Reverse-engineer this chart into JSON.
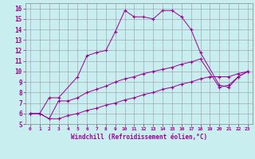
{
  "xlabel": "Windchill (Refroidissement éolien,°C)",
  "bg_color": "#c8eef0",
  "line_color": "#990099",
  "xlim": [
    -0.5,
    23.5
  ],
  "ylim": [
    5,
    16.5
  ],
  "xticks": [
    0,
    1,
    2,
    3,
    4,
    5,
    6,
    7,
    8,
    9,
    10,
    11,
    12,
    13,
    14,
    15,
    16,
    17,
    18,
    19,
    20,
    21,
    22,
    23
  ],
  "yticks": [
    5,
    6,
    7,
    8,
    9,
    10,
    11,
    12,
    13,
    14,
    15,
    16
  ],
  "line1_x": [
    0,
    1,
    2,
    3,
    5,
    6,
    7,
    8,
    9,
    10,
    11,
    12,
    13,
    14,
    15,
    16,
    17,
    18,
    20,
    21,
    22,
    23
  ],
  "line1_y": [
    6,
    6,
    7.5,
    7.5,
    9.5,
    11.5,
    11.8,
    12.0,
    13.8,
    15.8,
    15.2,
    15.2,
    15.0,
    15.8,
    15.8,
    15.2,
    14.0,
    11.8,
    8.7,
    8.5,
    9.5,
    10.0
  ],
  "line2_x": [
    0,
    1,
    2,
    3,
    4,
    5,
    6,
    7,
    8,
    9,
    10,
    11,
    12,
    13,
    14,
    15,
    16,
    17,
    18,
    20,
    21,
    22,
    23
  ],
  "line2_y": [
    6.0,
    6.0,
    5.5,
    7.2,
    7.2,
    7.5,
    8.0,
    8.3,
    8.6,
    9.0,
    9.3,
    9.5,
    9.8,
    10.0,
    10.2,
    10.4,
    10.7,
    10.9,
    11.2,
    8.5,
    8.7,
    9.5,
    10.0
  ],
  "line3_x": [
    0,
    1,
    2,
    3,
    4,
    5,
    6,
    7,
    8,
    9,
    10,
    11,
    12,
    13,
    14,
    15,
    16,
    17,
    18,
    19,
    20,
    21,
    22,
    23
  ],
  "line3_y": [
    6.0,
    6.0,
    5.5,
    5.5,
    5.8,
    6.0,
    6.3,
    6.5,
    6.8,
    7.0,
    7.3,
    7.5,
    7.8,
    8.0,
    8.3,
    8.5,
    8.8,
    9.0,
    9.3,
    9.5,
    9.5,
    9.5,
    9.8,
    10.0
  ]
}
